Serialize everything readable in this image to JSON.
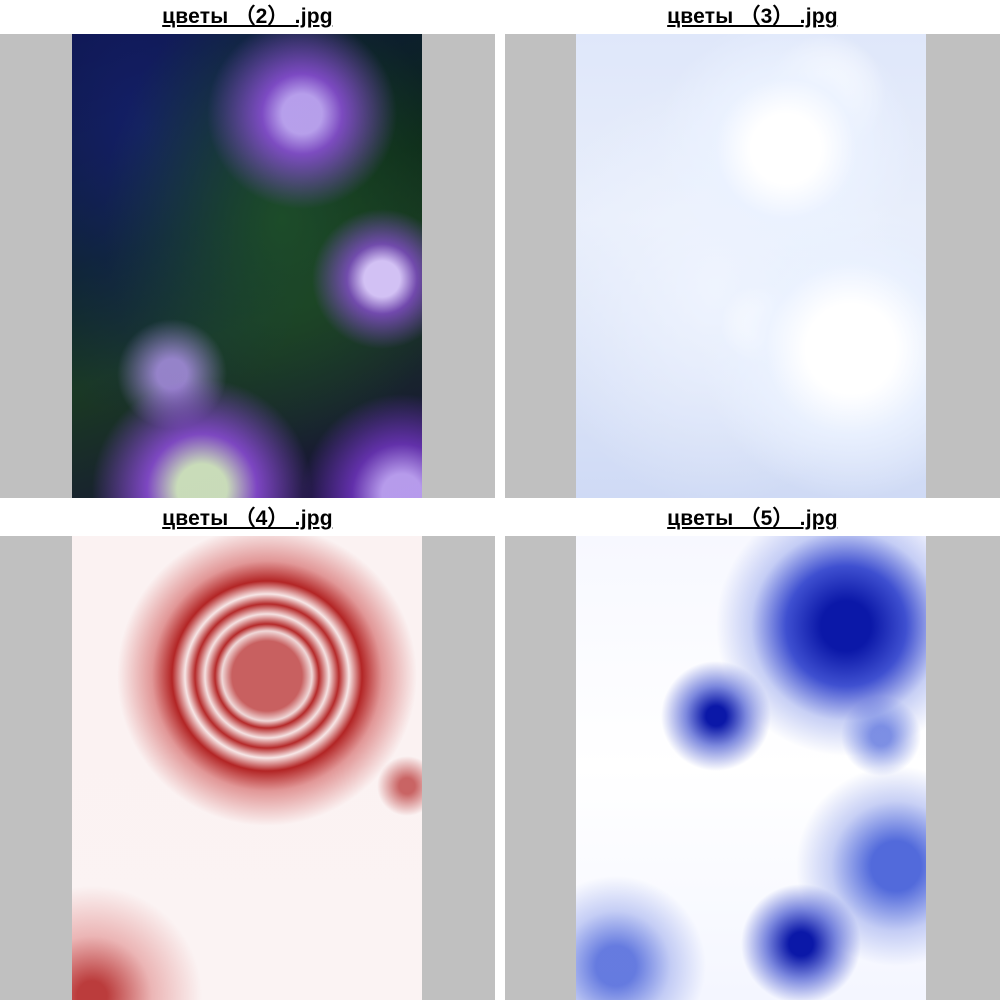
{
  "gallery": {
    "items": [
      {
        "caption": "цветы （2） .jpg",
        "theme": "dark purple and green fractal flowers",
        "accent": "#8a4fe0"
      },
      {
        "caption": "цветы （3） .jpg",
        "theme": "pale blue and white fractal flowers",
        "accent": "#d8e2f8"
      },
      {
        "caption": "цветы （4） .jpg",
        "theme": "red fractal flower on pale pink",
        "accent": "#b52a2a"
      },
      {
        "caption": "цветы （5） .jpg",
        "theme": "deep blue fractal flowers on white",
        "accent": "#0b18a8"
      }
    ],
    "frame_color": "#c0c0c0"
  }
}
